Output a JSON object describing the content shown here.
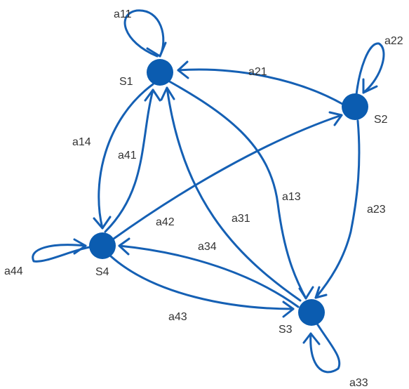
{
  "colors": {
    "node": "#0b5cb0",
    "edge": "#1560b4",
    "text": "#333333"
  },
  "nodes": {
    "s1": {
      "label": "S1"
    },
    "s2": {
      "label": "S2"
    },
    "s3": {
      "label": "S3"
    },
    "s4": {
      "label": "S4"
    }
  },
  "edges": {
    "a11": {
      "label": "a11",
      "from": "S1",
      "to": "S1"
    },
    "a22": {
      "label": "a22",
      "from": "S2",
      "to": "S2"
    },
    "a33": {
      "label": "a33",
      "from": "S3",
      "to": "S3"
    },
    "a44": {
      "label": "a44",
      "from": "S4",
      "to": "S4"
    },
    "a21": {
      "label": "a21",
      "from": "S2",
      "to": "S1"
    },
    "a14": {
      "label": "a14",
      "from": "S1",
      "to": "S4"
    },
    "a41": {
      "label": "a41",
      "from": "S4",
      "to": "S1"
    },
    "a13": {
      "label": "a13",
      "from": "S1",
      "to": "S3"
    },
    "a31": {
      "label": "a31",
      "from": "S3",
      "to": "S1"
    },
    "a23": {
      "label": "a23",
      "from": "S2",
      "to": "S3"
    },
    "a42": {
      "label": "a42",
      "from": "S4",
      "to": "S2"
    },
    "a34": {
      "label": "a34",
      "from": "S3",
      "to": "S4"
    },
    "a43": {
      "label": "a43",
      "from": "S4",
      "to": "S3"
    }
  }
}
